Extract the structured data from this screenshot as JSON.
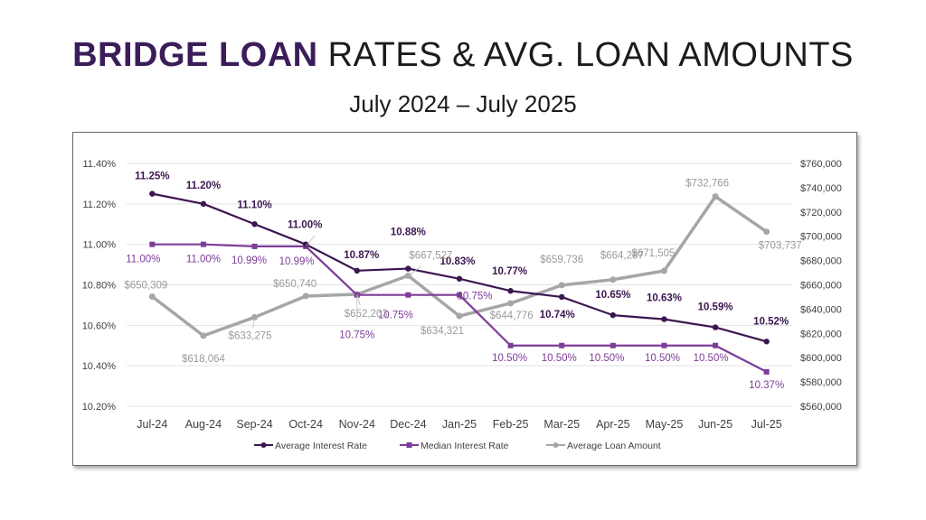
{
  "header": {
    "title_bold": "BRIDGE LOAN",
    "title_rest": " RATES & AVG. LOAN AMOUNTS",
    "subtitle": "July 2024 – July 2025"
  },
  "colors": {
    "avg_rate": "#3b1650",
    "median_rate": "#7d3c98",
    "avg_amount": "#a6a6a6",
    "grid": "#e3e3e3"
  },
  "chart_data": {
    "type": "line",
    "title": "BRIDGE LOAN RATES & AVG. LOAN AMOUNTS",
    "subtitle": "July 2024 – July 2025",
    "categories": [
      "Jul-24",
      "Aug-24",
      "Sep-24",
      "Oct-24",
      "Nov-24",
      "Dec-24",
      "Jan-25",
      "Feb-25",
      "Mar-25",
      "Apr-25",
      "May-25",
      "Jun-25",
      "Jul-25"
    ],
    "y_left": {
      "ticks": [
        10.2,
        10.4,
        10.6,
        10.8,
        11.0,
        11.2,
        11.4
      ],
      "tick_labels": [
        "10.20%",
        "10.40%",
        "10.60%",
        "10.80%",
        "11.00%",
        "11.20%",
        "11.40%"
      ],
      "range": [
        10.2,
        11.4
      ]
    },
    "y_right": {
      "ticks": [
        560000,
        580000,
        600000,
        620000,
        640000,
        660000,
        680000,
        700000,
        720000,
        740000,
        760000
      ],
      "tick_labels": [
        "$560,000",
        "$580,000",
        "$600,000",
        "$620,000",
        "$640,000",
        "$660,000",
        "$680,000",
        "$700,000",
        "$720,000",
        "$740,000",
        "$760,000"
      ],
      "range": [
        560000,
        760000
      ]
    },
    "grid": true,
    "legend_position": "bottom",
    "series": [
      {
        "name": "Average Interest Rate",
        "axis": "left",
        "values": [
          11.25,
          11.2,
          11.1,
          11.0,
          10.87,
          10.88,
          10.83,
          10.77,
          10.74,
          10.65,
          10.63,
          10.59,
          10.52
        ],
        "labels": [
          "11.25%",
          "11.20%",
          "11.10%",
          "11.00%",
          "10.87%",
          "10.88%",
          "10.83%",
          "10.77%",
          "10.74%",
          "10.65%",
          "10.63%",
          "10.59%",
          "10.52%"
        ]
      },
      {
        "name": "Median Interest Rate",
        "axis": "left",
        "step": true,
        "values": [
          11.0,
          11.0,
          10.99,
          10.99,
          10.75,
          10.75,
          10.75,
          10.5,
          10.5,
          10.5,
          10.5,
          10.5,
          10.37
        ],
        "labels": [
          "11.00%",
          "11.00%",
          "10.99%",
          "10.99%",
          "10.75%",
          "10.75%",
          "10.75%",
          "10.50%",
          "10.50%",
          "10.50%",
          "10.50%",
          "10.50%",
          "10.37%"
        ]
      },
      {
        "name": "Average Loan Amount",
        "axis": "right",
        "values": [
          650309,
          618064,
          633275,
          650740,
          652203,
          667527,
          634321,
          644776,
          659736,
          664287,
          671505,
          732766,
          703737
        ],
        "labels": [
          "$650,309",
          "$618,064",
          "$633,275",
          "$650,740",
          "$652,203",
          "$667,527",
          "$634,321",
          "$644,776",
          "$659,736",
          "$664,287",
          "$671,505",
          "$732,766",
          "$703,737"
        ]
      }
    ]
  }
}
